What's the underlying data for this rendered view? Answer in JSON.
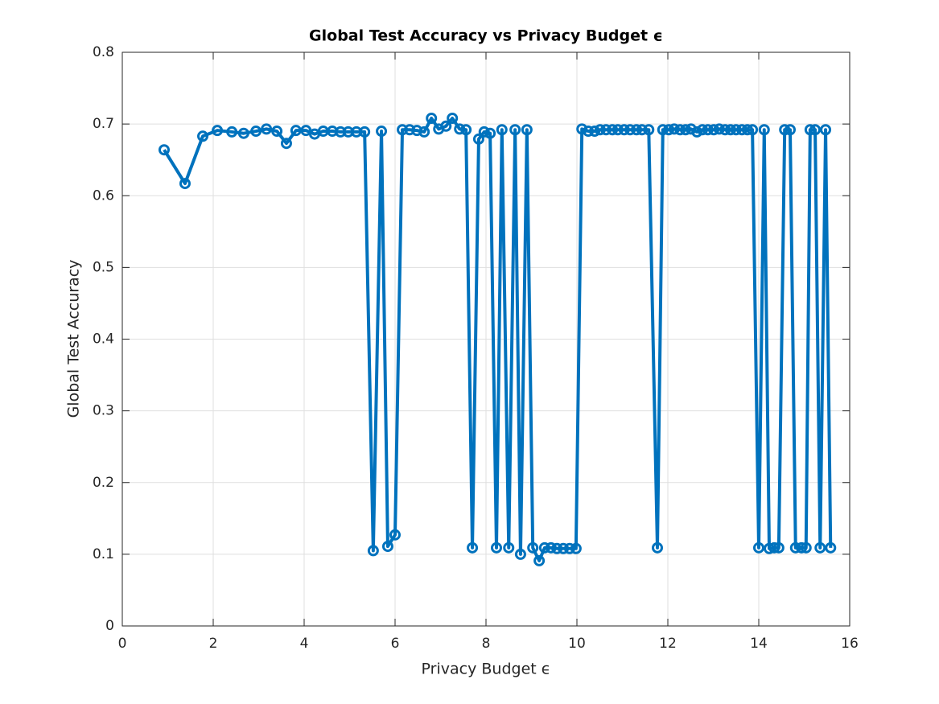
{
  "chart_data": {
    "type": "line",
    "title": "Global Test Accuracy vs Privacy Budget ϵ",
    "x_label": "Privacy Budget ϵ",
    "y_label": "Global Test Accuracy",
    "xlim": [
      0,
      16
    ],
    "xticks": [
      0,
      2,
      4,
      6,
      8,
      10,
      12,
      14,
      16
    ],
    "ylim": [
      0,
      0.8
    ],
    "yticks": [
      0,
      0.1,
      0.2,
      0.3,
      0.4,
      0.5,
      0.6,
      0.7,
      0.8
    ],
    "grid": true,
    "series": [
      {
        "color": "#0072bd",
        "x": [
          0.92,
          1.38,
          1.77,
          2.09,
          2.41,
          2.67,
          2.94,
          3.17,
          3.4,
          3.61,
          3.82,
          4.04,
          4.23,
          4.42,
          4.62,
          4.8,
          4.97,
          5.15,
          5.33,
          5.52,
          5.7,
          5.84,
          6.0,
          6.16,
          6.32,
          6.48,
          6.64,
          6.8,
          6.96,
          7.12,
          7.26,
          7.42,
          7.56,
          7.7,
          7.84,
          7.96,
          8.09,
          8.23,
          8.35,
          8.5,
          8.64,
          8.76,
          8.9,
          9.03,
          9.17,
          9.29,
          9.43,
          9.56,
          9.7,
          9.84,
          9.98,
          10.11,
          10.25,
          10.39,
          10.51,
          10.64,
          10.78,
          10.9,
          11.04,
          11.17,
          11.31,
          11.43,
          11.58,
          11.77,
          11.89,
          12.02,
          12.14,
          12.27,
          12.39,
          12.51,
          12.64,
          12.76,
          12.88,
          13.01,
          13.13,
          13.26,
          13.38,
          13.5,
          13.63,
          13.75,
          13.86,
          14.0,
          14.12,
          14.23,
          14.34,
          14.44,
          14.57,
          14.69,
          14.81,
          14.94,
          15.04,
          15.13,
          15.24,
          15.35,
          15.47,
          15.58
        ],
        "values": [
          0.664,
          0.617,
          0.683,
          0.691,
          0.689,
          0.687,
          0.69,
          0.693,
          0.69,
          0.673,
          0.691,
          0.691,
          0.686,
          0.69,
          0.69,
          0.689,
          0.689,
          0.689,
          0.689,
          0.105,
          0.69,
          0.111,
          0.127,
          0.692,
          0.692,
          0.691,
          0.689,
          0.708,
          0.693,
          0.697,
          0.708,
          0.693,
          0.692,
          0.109,
          0.679,
          0.689,
          0.687,
          0.109,
          0.692,
          0.109,
          0.692,
          0.1,
          0.692,
          0.109,
          0.091,
          0.109,
          0.109,
          0.108,
          0.108,
          0.108,
          0.108,
          0.693,
          0.69,
          0.69,
          0.692,
          0.692,
          0.692,
          0.692,
          0.692,
          0.692,
          0.692,
          0.692,
          0.692,
          0.109,
          0.692,
          0.692,
          0.693,
          0.692,
          0.692,
          0.693,
          0.689,
          0.692,
          0.692,
          0.692,
          0.693,
          0.692,
          0.692,
          0.692,
          0.692,
          0.692,
          0.692,
          0.109,
          0.692,
          0.108,
          0.109,
          0.109,
          0.692,
          0.692,
          0.109,
          0.109,
          0.109,
          0.692,
          0.692,
          0.109,
          0.692,
          0.109
        ]
      }
    ]
  }
}
